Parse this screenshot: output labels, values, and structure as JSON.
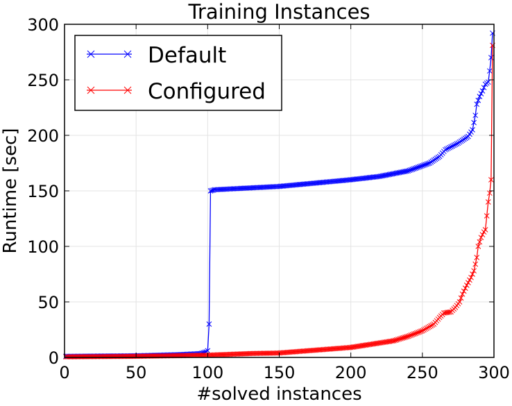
{
  "chart_data": {
    "type": "line",
    "title": "Training Instances",
    "xlabel": "#solved instances",
    "ylabel": "Runtime [sec]",
    "xlim": [
      0,
      300
    ],
    "ylim": [
      0,
      300
    ],
    "xticks": [
      0,
      50,
      100,
      150,
      200,
      250,
      300
    ],
    "yticks": [
      0,
      50,
      100,
      150,
      200,
      250,
      300
    ],
    "grid": true,
    "legend_position": "top-left",
    "series": [
      {
        "name": "Default",
        "color": "#0000ff",
        "marker": "x",
        "knots": [
          [
            1,
            1
          ],
          [
            20,
            1.2
          ],
          [
            50,
            1.5
          ],
          [
            80,
            2.5
          ],
          [
            95,
            3.5
          ],
          [
            99,
            5
          ],
          [
            100,
            6
          ],
          [
            101,
            30
          ],
          [
            102,
            150
          ],
          [
            105,
            151
          ],
          [
            120,
            152
          ],
          [
            150,
            154
          ],
          [
            175,
            157
          ],
          [
            200,
            160
          ],
          [
            220,
            163
          ],
          [
            240,
            168
          ],
          [
            255,
            175
          ],
          [
            262,
            181
          ],
          [
            266,
            187
          ],
          [
            275,
            193
          ],
          [
            282,
            199
          ],
          [
            285,
            205
          ],
          [
            287,
            218
          ],
          [
            288,
            228
          ],
          [
            290,
            235
          ],
          [
            292,
            240
          ],
          [
            294,
            246
          ],
          [
            296,
            248
          ],
          [
            297,
            258
          ],
          [
            298,
            270
          ],
          [
            299,
            292
          ]
        ]
      },
      {
        "name": "Configured",
        "color": "#ff0000",
        "marker": "x",
        "knots": [
          [
            1,
            0.5
          ],
          [
            50,
            1
          ],
          [
            100,
            2
          ],
          [
            130,
            3.5
          ],
          [
            150,
            4
          ],
          [
            170,
            6
          ],
          [
            190,
            8
          ],
          [
            200,
            9
          ],
          [
            210,
            11
          ],
          [
            220,
            13
          ],
          [
            230,
            15
          ],
          [
            240,
            19
          ],
          [
            250,
            24
          ],
          [
            258,
            30
          ],
          [
            262,
            36
          ],
          [
            265,
            40
          ],
          [
            270,
            41
          ],
          [
            273,
            45
          ],
          [
            276,
            50
          ],
          [
            278,
            57
          ],
          [
            281,
            65
          ],
          [
            284,
            72
          ],
          [
            286,
            78
          ],
          [
            288,
            90
          ],
          [
            289,
            100
          ],
          [
            291,
            108
          ],
          [
            293,
            113
          ],
          [
            294,
            115
          ],
          [
            296,
            140
          ],
          [
            297,
            148
          ],
          [
            298,
            160
          ],
          [
            299,
            281
          ]
        ]
      }
    ]
  }
}
